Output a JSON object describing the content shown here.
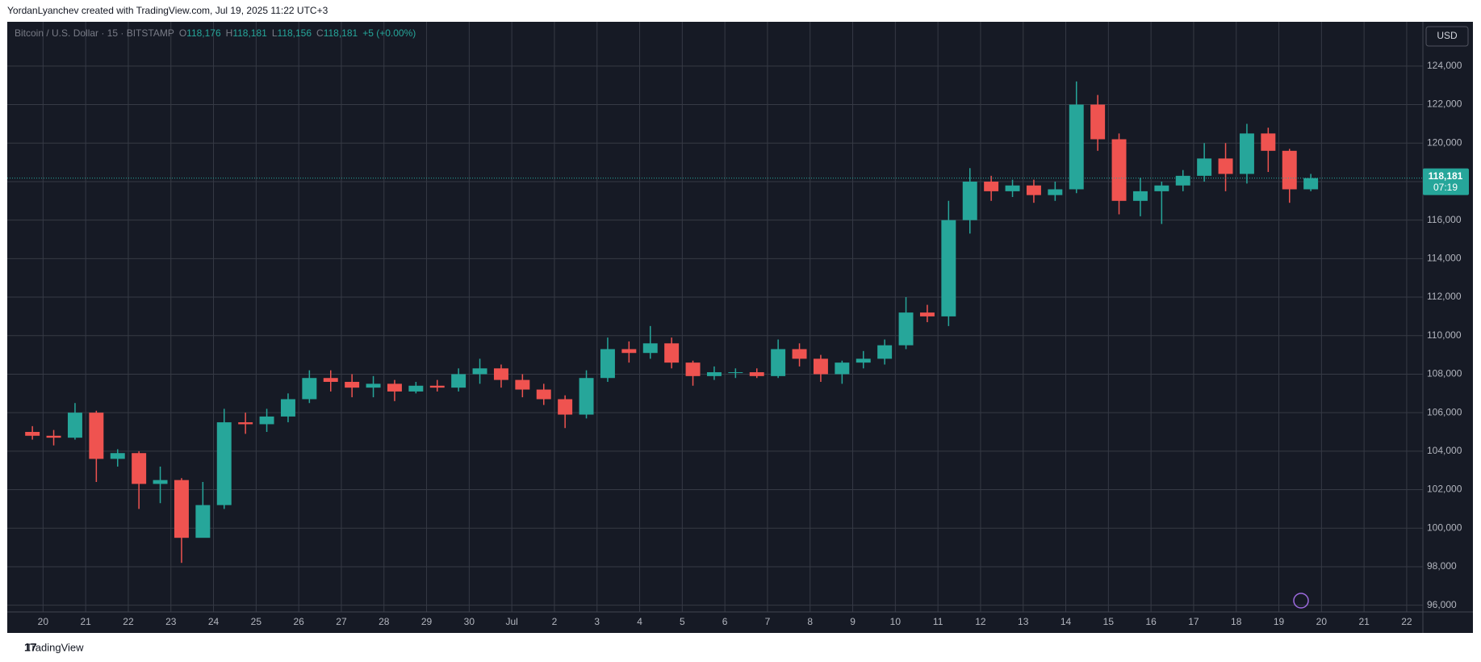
{
  "attribution": "YordanLyanchev created with TradingView.com, Jul 19, 2025 11:22 UTC+3",
  "brand": "TradingView",
  "chart_data": {
    "type": "candlestick",
    "title": "Bitcoin / U.S. Dollar · 15 · BITSTAMP",
    "ohlc_letters": [
      "O",
      "H",
      "L",
      "C"
    ],
    "ohlc_values": [
      "118,176",
      "118,181",
      "118,156",
      "118,181"
    ],
    "change": "+5 (+0.00%)",
    "currency": "USD",
    "last_price": {
      "value": 118181,
      "label": "118,181"
    },
    "countdown": "07:19",
    "up_color": "#26a69a",
    "down_color": "#ef5350",
    "grid": true,
    "x": [
      19.5,
      20,
      20.5,
      21,
      21.5,
      22,
      22.5,
      23,
      23.5,
      24,
      24.5,
      25,
      25.5,
      26,
      26.5,
      27,
      27.5,
      28,
      28.5,
      29,
      29.5,
      30,
      30.5,
      31,
      31.5,
      32,
      32.5,
      33,
      33.5,
      34,
      34.5,
      35,
      35.5,
      36,
      36.5,
      37,
      37.5,
      38,
      38.5,
      39,
      39.5,
      40,
      40.5,
      41,
      41.5,
      42,
      42.5,
      43,
      43.5,
      44,
      44.5,
      45,
      45.5,
      46,
      46.5,
      47,
      47.5,
      48,
      48.5,
      49,
      49.5
    ],
    "open": [
      105000,
      104800,
      104700,
      106000,
      103600,
      103900,
      102300,
      102500,
      99500,
      101200,
      105500,
      105400,
      105800,
      106700,
      107800,
      107600,
      107300,
      107500,
      107100,
      107400,
      107300,
      108000,
      108300,
      107700,
      107200,
      106700,
      105900,
      107800,
      109300,
      109100,
      109600,
      108600,
      107900,
      108100,
      108100,
      107900,
      109300,
      108800,
      108000,
      108600,
      108800,
      109500,
      111200,
      111000,
      116000,
      118000,
      117500,
      117800,
      117300,
      117600,
      122000,
      120200,
      117000,
      117500,
      117800,
      118300,
      119200,
      118400,
      120500,
      119600,
      117600
    ],
    "high": [
      105300,
      105100,
      106500,
      106100,
      104100,
      104000,
      103200,
      102600,
      102400,
      106200,
      106000,
      106200,
      107000,
      108200,
      108200,
      108000,
      107900,
      107700,
      107600,
      107700,
      108300,
      108800,
      108500,
      108000,
      107500,
      106900,
      108200,
      109900,
      109700,
      110500,
      109900,
      108700,
      108400,
      108300,
      108300,
      109800,
      109600,
      109000,
      108700,
      109200,
      109800,
      112000,
      111600,
      117000,
      118700,
      118300,
      118100,
      118100,
      118000,
      123200,
      122500,
      120500,
      118200,
      118000,
      118600,
      120000,
      120000,
      121000,
      120800,
      119700,
      118400
    ],
    "low": [
      104600,
      104300,
      104600,
      102400,
      103200,
      101000,
      101300,
      98200,
      99700,
      101000,
      104900,
      105000,
      105500,
      106500,
      107100,
      106800,
      106800,
      106600,
      107000,
      107100,
      107100,
      107500,
      107300,
      106800,
      106400,
      105200,
      105700,
      107600,
      108600,
      108800,
      108300,
      107400,
      107700,
      107800,
      107800,
      107800,
      108400,
      107600,
      107500,
      108300,
      108500,
      109300,
      110700,
      110500,
      115300,
      117000,
      117200,
      116900,
      117000,
      117400,
      119600,
      116300,
      116200,
      115800,
      117500,
      118000,
      117500,
      117900,
      118500,
      116900,
      117500
    ],
    "close": [
      104800,
      104700,
      106000,
      103600,
      103900,
      102300,
      102500,
      99500,
      101200,
      105500,
      105400,
      105800,
      106700,
      107800,
      107600,
      107300,
      107500,
      107100,
      107400,
      107300,
      108000,
      108300,
      107700,
      107200,
      106700,
      105900,
      107800,
      109300,
      109100,
      109600,
      108600,
      107900,
      108100,
      108100,
      107900,
      109300,
      108800,
      108000,
      108600,
      108800,
      109500,
      111200,
      111000,
      116000,
      118000,
      117500,
      117800,
      117300,
      117600,
      122000,
      120200,
      117000,
      117500,
      117800,
      118300,
      119200,
      118400,
      120500,
      119600,
      117600,
      118181
    ],
    "xlim": [
      19.16,
      52.38
    ],
    "xticks": [
      {
        "value": 20,
        "label": "20"
      },
      {
        "value": 21,
        "label": "21"
      },
      {
        "value": 22,
        "label": "22"
      },
      {
        "value": 23,
        "label": "23"
      },
      {
        "value": 24,
        "label": "24"
      },
      {
        "value": 25,
        "label": "25"
      },
      {
        "value": 26,
        "label": "26"
      },
      {
        "value": 27,
        "label": "27"
      },
      {
        "value": 28,
        "label": "28"
      },
      {
        "value": 29,
        "label": "29"
      },
      {
        "value": 30,
        "label": "30"
      },
      {
        "value": 31,
        "label": "Jul"
      },
      {
        "value": 32,
        "label": "2"
      },
      {
        "value": 33,
        "label": "3"
      },
      {
        "value": 34,
        "label": "4"
      },
      {
        "value": 35,
        "label": "5"
      },
      {
        "value": 36,
        "label": "6"
      },
      {
        "value": 37,
        "label": "7"
      },
      {
        "value": 38,
        "label": "8"
      },
      {
        "value": 39,
        "label": "9"
      },
      {
        "value": 40,
        "label": "10"
      },
      {
        "value": 41,
        "label": "11"
      },
      {
        "value": 42,
        "label": "12"
      },
      {
        "value": 43,
        "label": "13"
      },
      {
        "value": 44,
        "label": "14"
      },
      {
        "value": 45,
        "label": "15"
      },
      {
        "value": 46,
        "label": "16"
      },
      {
        "value": 47,
        "label": "17"
      },
      {
        "value": 48,
        "label": "18"
      },
      {
        "value": 49,
        "label": "19"
      },
      {
        "value": 50,
        "label": "20"
      },
      {
        "value": 51,
        "label": "21"
      },
      {
        "value": 52,
        "label": "22"
      }
    ],
    "ylim": [
      95650,
      126300
    ],
    "yticks": [
      {
        "value": 96000,
        "label": "96,000"
      },
      {
        "value": 98000,
        "label": "98,000"
      },
      {
        "value": 100000,
        "label": "100,000"
      },
      {
        "value": 102000,
        "label": "102,000"
      },
      {
        "value": 104000,
        "label": "104,000"
      },
      {
        "value": 106000,
        "label": "106,000"
      },
      {
        "value": 108000,
        "label": "108,000"
      },
      {
        "value": 110000,
        "label": "110,000"
      },
      {
        "value": 112000,
        "label": "112,000"
      },
      {
        "value": 114000,
        "label": "114,000"
      },
      {
        "value": 116000,
        "label": "116,000"
      },
      {
        "value": 118000,
        "label": "118,000"
      },
      {
        "value": 120000,
        "label": "120,000"
      },
      {
        "value": 122000,
        "label": "122,000"
      },
      {
        "value": 124000,
        "label": "124,000"
      }
    ]
  }
}
